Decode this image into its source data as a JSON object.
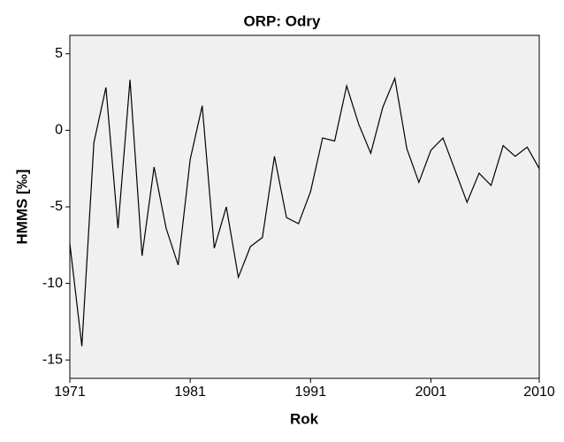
{
  "chart_data": {
    "type": "line",
    "title": "ORP: Odry",
    "x_label": "Rok",
    "y_label": "HMMS [‰]",
    "x": [
      1971,
      1972,
      1973,
      1974,
      1975,
      1976,
      1977,
      1978,
      1979,
      1980,
      1981,
      1982,
      1983,
      1984,
      1985,
      1986,
      1987,
      1988,
      1989,
      1990,
      1991,
      1992,
      1993,
      1994,
      1995,
      1996,
      1997,
      1998,
      1999,
      2000,
      2001,
      2002,
      2003,
      2004,
      2005,
      2006,
      2007,
      2008,
      2009,
      2010
    ],
    "values": [
      -7.4,
      -14.1,
      -0.8,
      2.8,
      -6.4,
      3.3,
      -8.2,
      -2.4,
      -6.4,
      -8.8,
      -1.9,
      1.6,
      -7.7,
      -5.0,
      -9.6,
      -7.6,
      -7.0,
      -1.7,
      -5.7,
      -6.1,
      -4.0,
      -0.5,
      -0.7,
      2.9,
      0.4,
      -1.5,
      1.5,
      3.4,
      -1.2,
      -3.4,
      -1.3,
      -0.5,
      -2.6,
      -4.7,
      -2.8,
      -3.6,
      -1.0,
      -1.7,
      -1.1,
      -2.5
    ],
    "color": "#000000",
    "background": "#f0f0f0",
    "xlim": [
      1971,
      2010
    ],
    "xticks": [
      1971,
      1981,
      1991,
      2001,
      2010
    ],
    "ylim": [
      -16.2,
      6.2
    ],
    "yticks": [
      5,
      0,
      -5,
      -10,
      -15
    ],
    "grid": false
  }
}
